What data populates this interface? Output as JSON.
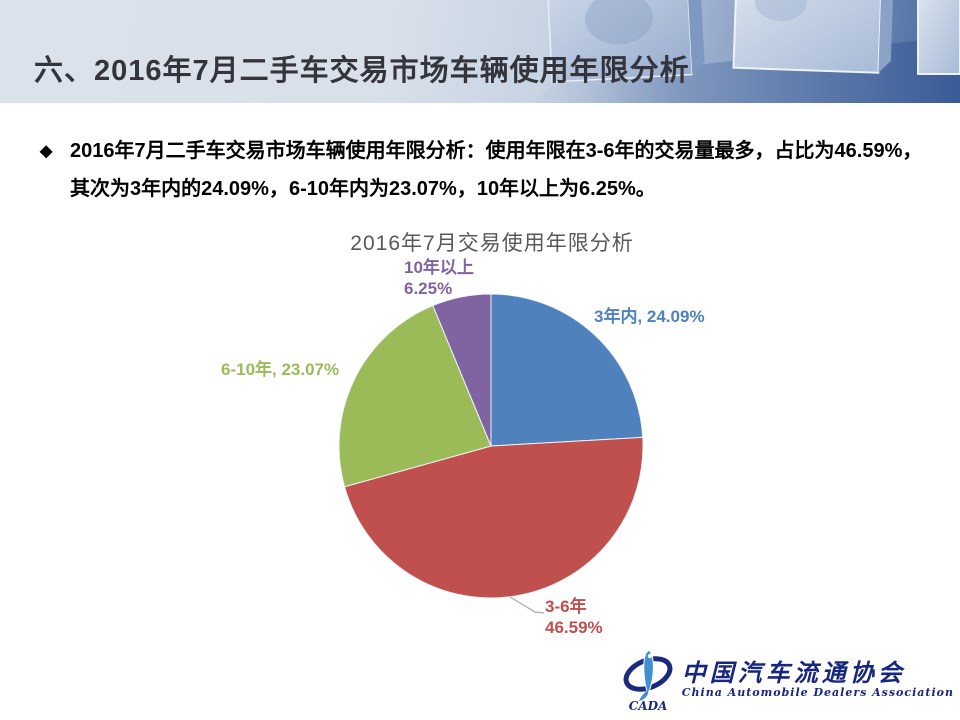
{
  "slide": {
    "header_title": "六、2016年7月二手车交易市场车辆使用年限分析",
    "bullet_glyph": "◆",
    "bullet_text": "2016年7月二手车交易市场车辆使用年限分析：使用年限在3-6年的交易量最多，占比为46.59%，其次为3年内的24.09%，6-10年内为23.07%，10年以上为6.25%。"
  },
  "chart_data": {
    "type": "pie",
    "title": "2016年7月交易使用年限分析",
    "categories": [
      "3年内",
      "3-6年",
      "6-10年",
      "10年以上"
    ],
    "values": [
      24.09,
      46.59,
      23.07,
      6.25
    ],
    "unit": "%",
    "start_angle_deg": 0,
    "direction": "clockwise",
    "legend_position": "none",
    "slices": [
      {
        "name": "3年内",
        "value": 24.09,
        "color": "#4F81BD",
        "label": "3年内, 24.09%"
      },
      {
        "name": "3-6年",
        "value": 46.59,
        "color": "#C0504D",
        "label_line1": "3-6年",
        "label_line2": "46.59%"
      },
      {
        "name": "6-10年",
        "value": 23.07,
        "color": "#9BBB59",
        "label": "6-10年, 23.07%"
      },
      {
        "name": "10年以上",
        "value": 6.25,
        "color": "#8064A2",
        "label_line1": "10年以上",
        "label_line2": "6.25%"
      }
    ]
  },
  "footer_logo": {
    "org_cn": "中国汽车流通协会",
    "org_en": "China Automobile Dealers Association",
    "acronym": "CADA",
    "brand_blue": "#17267e"
  }
}
